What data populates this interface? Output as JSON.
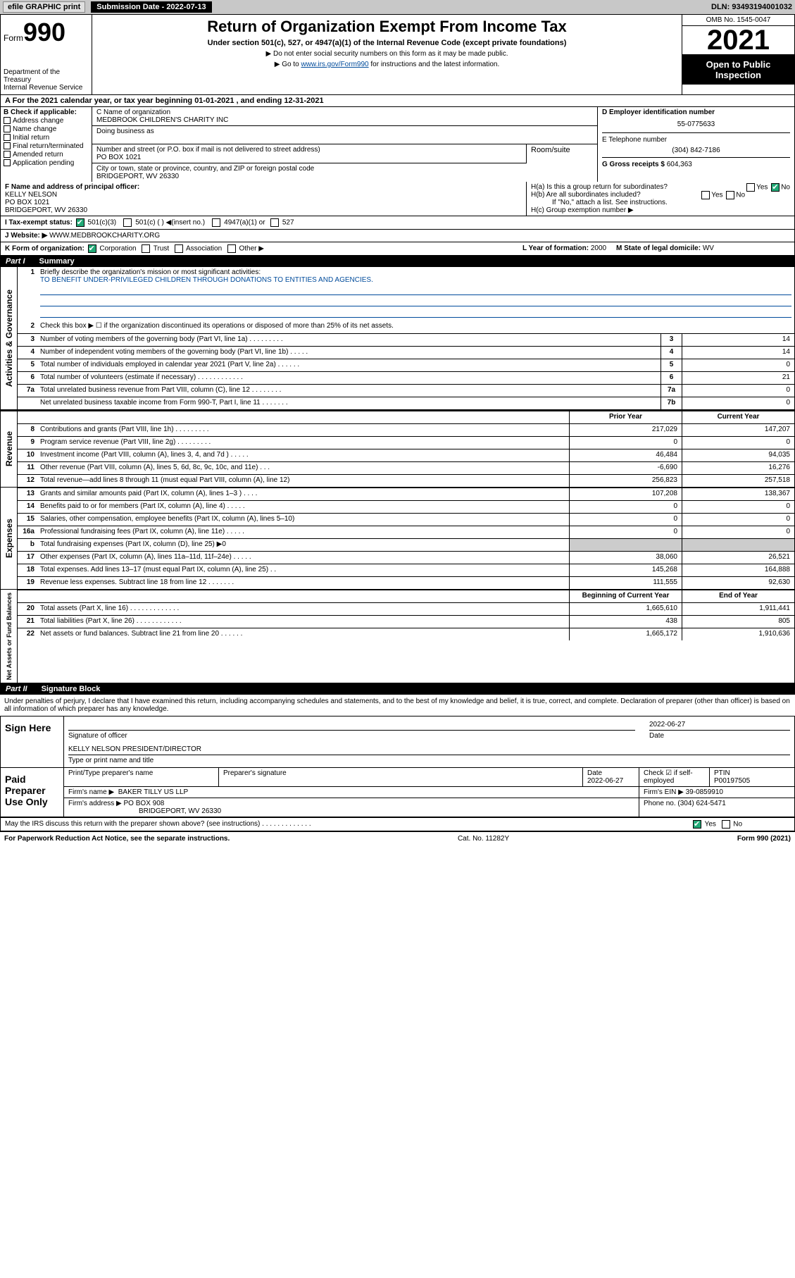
{
  "topbar": {
    "efile": "efile GRAPHIC print",
    "subdate_label": "Submission Date - 2022-07-13",
    "dln": "DLN: 93493194001032"
  },
  "header": {
    "form_word": "Form",
    "form_num": "990",
    "dept": "Department of the Treasury",
    "irs": "Internal Revenue Service",
    "title": "Return of Organization Exempt From Income Tax",
    "sub": "Under section 501(c), 527, or 4947(a)(1) of the Internal Revenue Code (except private foundations)",
    "note1": "▶ Do not enter social security numbers on this form as it may be made public.",
    "note2_pre": "▶ Go to ",
    "note2_link": "www.irs.gov/Form990",
    "note2_post": " for instructions and the latest information.",
    "omb": "OMB No. 1545-0047",
    "year": "2021",
    "open": "Open to Public Inspection"
  },
  "rowA": "A For the 2021 calendar year, or tax year beginning 01-01-2021  , and ending 12-31-2021",
  "colB": {
    "hdr": "B Check if applicable:",
    "items": [
      "Address change",
      "Name change",
      "Initial return",
      "Final return/terminated",
      "Amended return",
      "Application pending"
    ]
  },
  "colC": {
    "name_lbl": "C Name of organization",
    "name": "MEDBROOK CHILDREN'S CHARITY INC",
    "dba_lbl": "Doing business as",
    "addr_lbl": "Number and street (or P.O. box if mail is not delivered to street address)",
    "room_lbl": "Room/suite",
    "addr": "PO BOX 1021",
    "city_lbl": "City or town, state or province, country, and ZIP or foreign postal code",
    "city": "BRIDGEPORT, WV  26330"
  },
  "colD": {
    "ein_lbl": "D Employer identification number",
    "ein": "55-0775633",
    "tel_lbl": "E Telephone number",
    "tel": "(304) 842-7186",
    "gross_lbl": "G Gross receipts $",
    "gross": "604,363"
  },
  "rowF": {
    "lbl": "F Name and address of principal officer:",
    "name": "KELLY NELSON",
    "addr1": "PO BOX 1021",
    "addr2": "BRIDGEPORT, WV  26330"
  },
  "rowH": {
    "ha": "H(a)  Is this a group return for subordinates?",
    "hb": "H(b)  Are all subordinates included?",
    "hb_note": "If \"No,\" attach a list. See instructions.",
    "hc": "H(c)  Group exemption number ▶",
    "yes": "Yes",
    "no": "No"
  },
  "rowI": {
    "lbl": "I    Tax-exempt status:",
    "o1": "501(c)(3)",
    "o2": "501(c) (  ) ◀(insert no.)",
    "o3": "4947(a)(1) or",
    "o4": "527"
  },
  "rowJ": {
    "lbl": "J   Website: ▶",
    "val": "WWW.MEDBROOKCHARITY.ORG"
  },
  "rowK": {
    "lbl": "K Form of organization:",
    "opts": [
      "Corporation",
      "Trust",
      "Association",
      "Other ▶"
    ],
    "L_lbl": "L Year of formation:",
    "L_val": "2000",
    "M_lbl": "M State of legal domicile:",
    "M_val": "WV"
  },
  "part1": {
    "label": "Part I",
    "title": "Summary"
  },
  "summary": {
    "side1": "Activities & Governance",
    "side2": "Revenue",
    "side3": "Expenses",
    "side4": "Net Assets or Fund Balances",
    "l1_lbl": "Briefly describe the organization's mission or most significant activities:",
    "l1_val": "TO BENEFIT UNDER-PRIVILEGED CHILDREN THROUGH DONATIONS TO ENTITIES AND AGENCIES.",
    "l2": "Check this box ▶ ☐  if the organization discontinued its operations or disposed of more than 25% of its net assets.",
    "lines_gov": [
      {
        "n": "3",
        "t": "Number of voting members of the governing body (Part VI, line 1a)  .   .   .   .   .   .   .   .   .",
        "b": "3",
        "v": "14"
      },
      {
        "n": "4",
        "t": "Number of independent voting members of the governing body (Part VI, line 1b)   .   .   .   .   .",
        "b": "4",
        "v": "14"
      },
      {
        "n": "5",
        "t": "Total number of individuals employed in calendar year 2021 (Part V, line 2a)   .   .   .   .   .   .",
        "b": "5",
        "v": "0"
      },
      {
        "n": "6",
        "t": "Total number of volunteers (estimate if necessary)   .   .   .   .   .   .   .   .   .   .   .   .",
        "b": "6",
        "v": "21"
      },
      {
        "n": "7a",
        "t": "Total unrelated business revenue from Part VIII, column (C), line 12   .   .   .   .   .   .   .   .",
        "b": "7a",
        "v": "0"
      },
      {
        "n": "",
        "t": "Net unrelated business taxable income from Form 990-T, Part I, line 11   .   .   .   .   .   .   .",
        "b": "7b",
        "v": "0"
      }
    ],
    "col_prior": "Prior Year",
    "col_curr": "Current Year",
    "lines_rev": [
      {
        "n": "8",
        "t": "Contributions and grants (Part VIII, line 1h)   .   .   .   .   .   .   .   .   .",
        "p": "217,029",
        "c": "147,207"
      },
      {
        "n": "9",
        "t": "Program service revenue (Part VIII, line 2g)   .   .   .   .   .   .   .   .   .",
        "p": "0",
        "c": "0"
      },
      {
        "n": "10",
        "t": "Investment income (Part VIII, column (A), lines 3, 4, and 7d )   .   .   .   .   .",
        "p": "46,484",
        "c": "94,035"
      },
      {
        "n": "11",
        "t": "Other revenue (Part VIII, column (A), lines 5, 6d, 8c, 9c, 10c, and 11e)   .   .   .",
        "p": "-6,690",
        "c": "16,276"
      },
      {
        "n": "12",
        "t": "Total revenue—add lines 8 through 11 (must equal Part VIII, column (A), line 12)",
        "p": "256,823",
        "c": "257,518"
      }
    ],
    "lines_exp": [
      {
        "n": "13",
        "t": "Grants and similar amounts paid (Part IX, column (A), lines 1–3 )   .   .   .   .",
        "p": "107,208",
        "c": "138,367"
      },
      {
        "n": "14",
        "t": "Benefits paid to or for members (Part IX, column (A), line 4)   .   .   .   .   .",
        "p": "0",
        "c": "0"
      },
      {
        "n": "15",
        "t": "Salaries, other compensation, employee benefits (Part IX, column (A), lines 5–10)",
        "p": "0",
        "c": "0"
      },
      {
        "n": "16a",
        "t": "Professional fundraising fees (Part IX, column (A), line 11e)   .   .   .   .   .",
        "p": "0",
        "c": "0"
      },
      {
        "n": "b",
        "t": "Total fundraising expenses (Part IX, column (D), line 25) ▶0",
        "p": "",
        "c": "",
        "shade": true
      },
      {
        "n": "17",
        "t": "Other expenses (Part IX, column (A), lines 11a–11d, 11f–24e)   .   .   .   .   .",
        "p": "38,060",
        "c": "26,521"
      },
      {
        "n": "18",
        "t": "Total expenses. Add lines 13–17 (must equal Part IX, column (A), line 25)   .   .",
        "p": "145,268",
        "c": "164,888"
      },
      {
        "n": "19",
        "t": "Revenue less expenses. Subtract line 18 from line 12   .   .   .   .   .   .   .",
        "p": "111,555",
        "c": "92,630"
      }
    ],
    "col_beg": "Beginning of Current Year",
    "col_end": "End of Year",
    "lines_net": [
      {
        "n": "20",
        "t": "Total assets (Part X, line 16)   .   .   .   .   .   .   .   .   .   .   .   .   .",
        "p": "1,665,610",
        "c": "1,911,441"
      },
      {
        "n": "21",
        "t": "Total liabilities (Part X, line 26)   .   .   .   .   .   .   .   .   .   .   .   .",
        "p": "438",
        "c": "805"
      },
      {
        "n": "22",
        "t": "Net assets or fund balances. Subtract line 21 from line 20   .   .   .   .   .   .",
        "p": "1,665,172",
        "c": "1,910,636"
      }
    ]
  },
  "part2": {
    "label": "Part II",
    "title": "Signature Block"
  },
  "penalties": "Under penalties of perjury, I declare that I have examined this return, including accompanying schedules and statements, and to the best of my knowledge and belief, it is true, correct, and complete. Declaration of preparer (other than officer) is based on all information of which preparer has any knowledge.",
  "sign": {
    "label": "Sign Here",
    "sig_lbl": "Signature of officer",
    "date_lbl": "Date",
    "date_val": "2022-06-27",
    "name": "KELLY NELSON  PRESIDENT/DIRECTOR",
    "name_lbl": "Type or print name and title"
  },
  "prep": {
    "label": "Paid Preparer Use Only",
    "h1": "Print/Type preparer's name",
    "h2": "Preparer's signature",
    "h3": "Date",
    "h3v": "2022-06-27",
    "h4": "Check ☑ if self-employed",
    "h5": "PTIN",
    "h5v": "P00197505",
    "firm_lbl": "Firm's name    ▶",
    "firm": "BAKER TILLY US LLP",
    "ein_lbl": "Firm's EIN ▶",
    "ein": "39-0859910",
    "addr_lbl": "Firm's address ▶",
    "addr1": "PO BOX 908",
    "addr2": "BRIDGEPORT, WV  26330",
    "phone_lbl": "Phone no.",
    "phone": "(304) 624-5471"
  },
  "may_irs": "May the IRS discuss this return with the preparer shown above? (see instructions)   .   .   .   .   .   .   .   .   .   .   .   .   .",
  "footer": {
    "left": "For Paperwork Reduction Act Notice, see the separate instructions.",
    "mid": "Cat. No. 11282Y",
    "right": "Form 990 (2021)"
  }
}
